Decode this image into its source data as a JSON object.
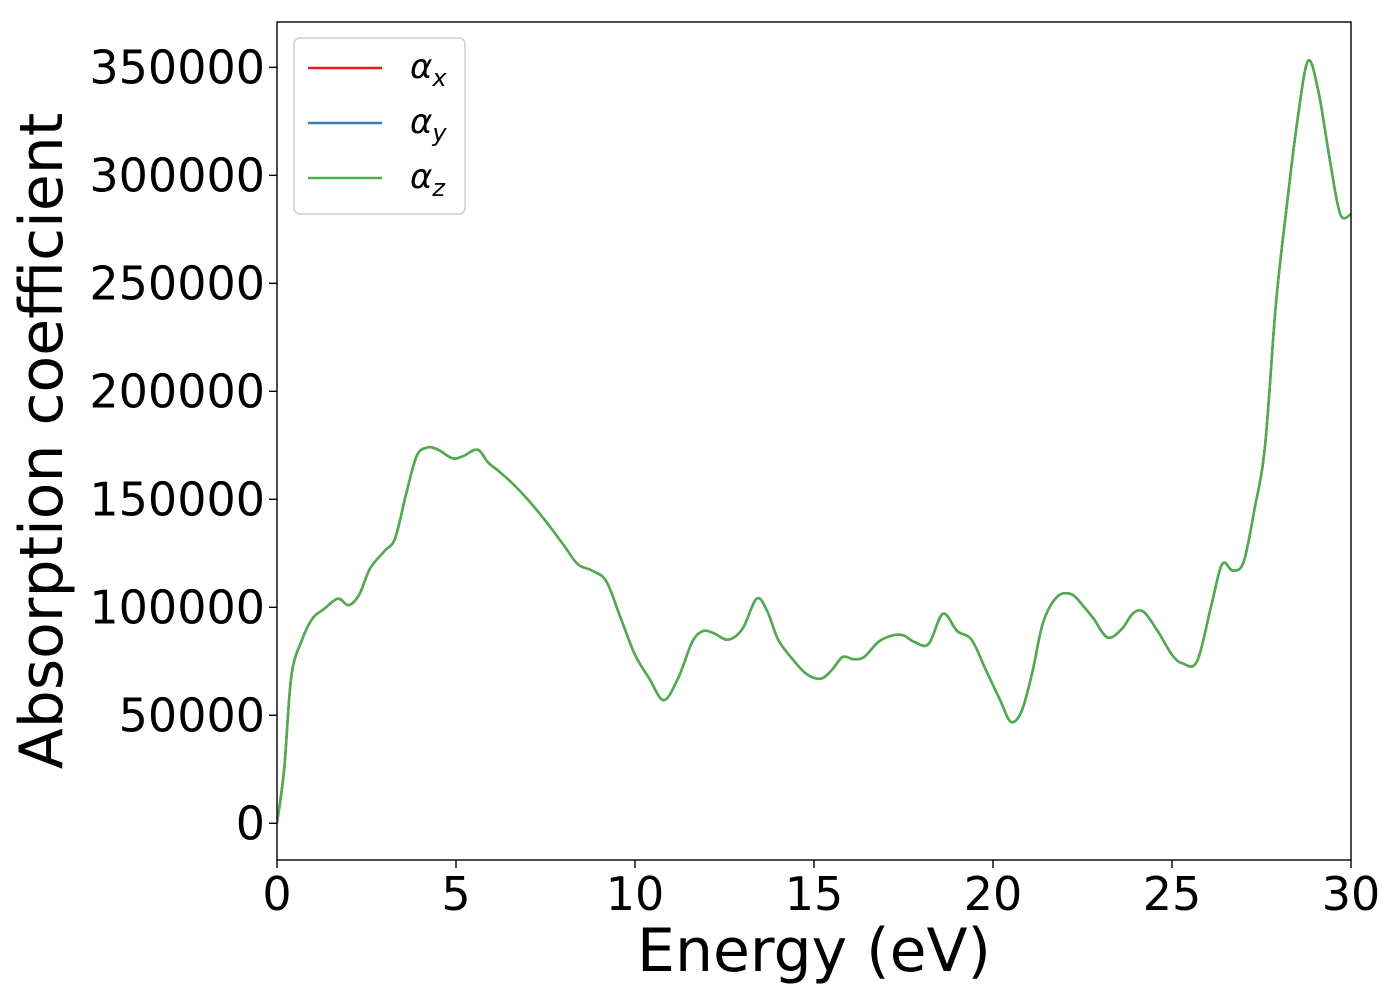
{
  "chart_data": {
    "type": "line",
    "title": "",
    "xlabel": "Energy (eV)",
    "ylabel": "Absorption coefficient",
    "xlim": [
      0,
      30
    ],
    "ylim": [
      -17000,
      371000
    ],
    "xticks": [
      0,
      5,
      10,
      15,
      20,
      25,
      30
    ],
    "yticks": [
      0,
      50000,
      100000,
      150000,
      200000,
      250000,
      300000,
      350000
    ],
    "grid": false,
    "legend_position": "top-left",
    "x": [
      0,
      0.2,
      0.4,
      0.7,
      1.0,
      1.3,
      1.7,
      2.0,
      2.3,
      2.6,
      3.0,
      3.3,
      3.6,
      3.9,
      4.2,
      4.5,
      4.9,
      5.2,
      5.6,
      5.9,
      6.2,
      6.6,
      7.0,
      7.5,
      8.0,
      8.4,
      8.8,
      9.2,
      9.6,
      10.0,
      10.4,
      10.8,
      11.2,
      11.6,
      11.9,
      12.2,
      12.6,
      13.0,
      13.4,
      13.7,
      14.0,
      14.4,
      14.8,
      15.2,
      15.5,
      15.8,
      16.1,
      16.4,
      16.8,
      17.2,
      17.5,
      17.8,
      18.2,
      18.6,
      19.0,
      19.4,
      19.8,
      20.2,
      20.5,
      20.8,
      21.1,
      21.4,
      21.8,
      22.2,
      22.5,
      22.8,
      23.2,
      23.6,
      23.9,
      24.2,
      24.6,
      25.0,
      25.3,
      25.7,
      26.1,
      26.4,
      26.7,
      27.0,
      27.3,
      27.6,
      27.9,
      28.2,
      28.5,
      28.8,
      29.1,
      29.4,
      29.7,
      30.0
    ],
    "series": [
      {
        "name": "α_x",
        "name_base": "α",
        "name_sub": "x",
        "color": "#e41a1c",
        "values": [
          0,
          25000,
          68000,
          85000,
          95000,
          99000,
          104000,
          101000,
          106000,
          118000,
          126000,
          132000,
          152000,
          170000,
          174000,
          173000,
          169000,
          170000,
          173000,
          167000,
          163000,
          157000,
          150000,
          140000,
          129000,
          120000,
          117000,
          112000,
          95000,
          78000,
          67000,
          57000,
          67000,
          84000,
          89000,
          88000,
          85000,
          90000,
          104000,
          98000,
          85000,
          76000,
          69000,
          67000,
          71000,
          77000,
          76000,
          77000,
          84000,
          87000,
          87000,
          84000,
          83000,
          97000,
          89000,
          85000,
          71000,
          57000,
          47000,
          52000,
          70000,
          93000,
          105000,
          106000,
          101000,
          95000,
          86000,
          90000,
          97000,
          98000,
          89000,
          78000,
          74000,
          75000,
          101000,
          120000,
          117000,
          121000,
          145000,
          175000,
          240000,
          285000,
          325000,
          353000,
          338000,
          308000,
          282000,
          282000
        ]
      },
      {
        "name": "α_y",
        "name_base": "α",
        "name_sub": "y",
        "color": "#377eb8",
        "values": [
          0,
          25000,
          68000,
          85000,
          95000,
          99000,
          104000,
          101000,
          106000,
          118000,
          126000,
          132000,
          152000,
          170000,
          174000,
          173000,
          169000,
          170000,
          173000,
          167000,
          163000,
          157000,
          150000,
          140000,
          129000,
          120000,
          117000,
          112000,
          95000,
          78000,
          67000,
          57000,
          67000,
          84000,
          89000,
          88000,
          85000,
          90000,
          104000,
          98000,
          85000,
          76000,
          69000,
          67000,
          71000,
          77000,
          76000,
          77000,
          84000,
          87000,
          87000,
          84000,
          83000,
          97000,
          89000,
          85000,
          71000,
          57000,
          47000,
          52000,
          70000,
          93000,
          105000,
          106000,
          101000,
          95000,
          86000,
          90000,
          97000,
          98000,
          89000,
          78000,
          74000,
          75000,
          101000,
          120000,
          117000,
          121000,
          145000,
          175000,
          240000,
          285000,
          325000,
          353000,
          338000,
          308000,
          282000,
          282000
        ]
      },
      {
        "name": "α_z",
        "name_base": "α",
        "name_sub": "z",
        "color": "#4daf4a",
        "values": [
          0,
          25000,
          68000,
          85000,
          95000,
          99000,
          104000,
          101000,
          106000,
          118000,
          126000,
          132000,
          152000,
          170000,
          174000,
          173000,
          169000,
          170000,
          173000,
          167000,
          163000,
          157000,
          150000,
          140000,
          129000,
          120000,
          117000,
          112000,
          95000,
          78000,
          67000,
          57000,
          67000,
          84000,
          89000,
          88000,
          85000,
          90000,
          104000,
          98000,
          85000,
          76000,
          69000,
          67000,
          71000,
          77000,
          76000,
          77000,
          84000,
          87000,
          87000,
          84000,
          83000,
          97000,
          89000,
          85000,
          71000,
          57000,
          47000,
          52000,
          70000,
          93000,
          105000,
          106000,
          101000,
          95000,
          86000,
          90000,
          97000,
          98000,
          89000,
          78000,
          74000,
          75000,
          101000,
          120000,
          117000,
          121000,
          145000,
          175000,
          240000,
          285000,
          325000,
          353000,
          338000,
          308000,
          282000,
          282000
        ]
      }
    ]
  }
}
